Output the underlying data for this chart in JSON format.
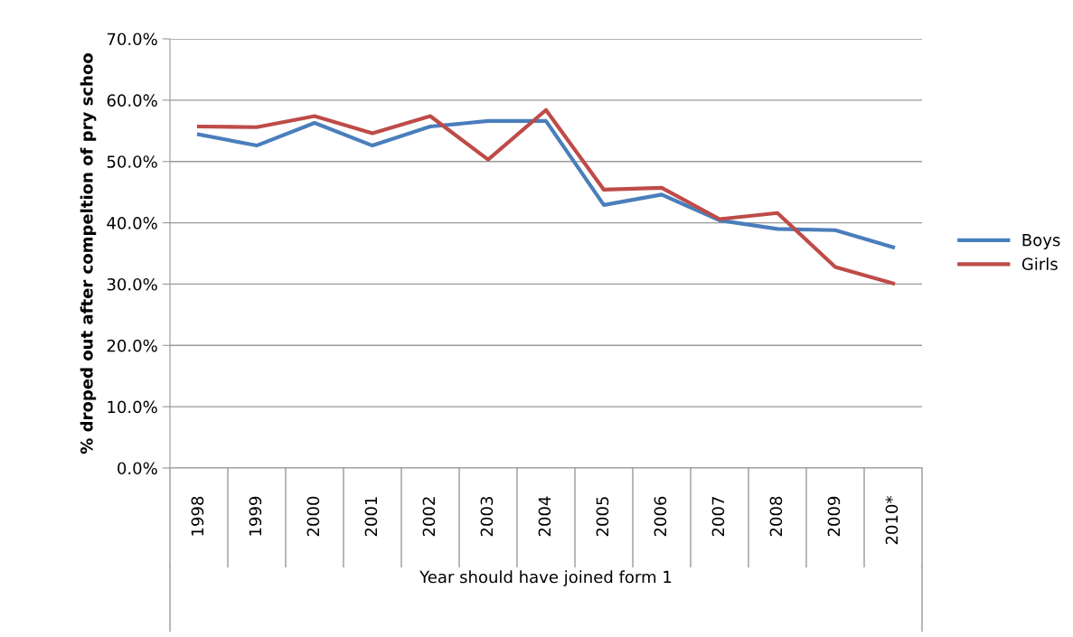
{
  "chart_data": {
    "type": "line",
    "xlabel": "Year should have joined form 1",
    "ylabel": "% droped out after compeltion of pry schoo",
    "categories": [
      "1998",
      "1999",
      "2000",
      "2001",
      "2002",
      "2003",
      "2004",
      "2005",
      "2006",
      "2007",
      "2008",
      "2009",
      "2010*"
    ],
    "series": [
      {
        "name": "Boys",
        "color": "#4a7ebb",
        "values": [
          54.4,
          52.6,
          56.3,
          52.6,
          55.7,
          56.6,
          56.6,
          42.9,
          44.6,
          40.4,
          39.0,
          38.8,
          36.0
        ]
      },
      {
        "name": "Girls",
        "color": "#be4b48",
        "values": [
          55.7,
          55.6,
          57.4,
          54.6,
          57.4,
          50.3,
          58.4,
          45.4,
          45.7,
          40.6,
          41.6,
          32.8,
          30.1
        ]
      }
    ],
    "ylim": [
      0,
      70
    ],
    "yticks": [
      {
        "value": 0,
        "label": "0.0%"
      },
      {
        "value": 10,
        "label": "10.0%"
      },
      {
        "value": 20,
        "label": "20.0%"
      },
      {
        "value": 30,
        "label": "30.0%"
      },
      {
        "value": 40,
        "label": "40.0%"
      },
      {
        "value": 50,
        "label": "50.0%"
      },
      {
        "value": 60,
        "label": "60.0%"
      },
      {
        "value": 70,
        "label": "70.0%"
      }
    ],
    "grid": "y",
    "legend": "right",
    "marker": "none",
    "line_style": "solid"
  }
}
